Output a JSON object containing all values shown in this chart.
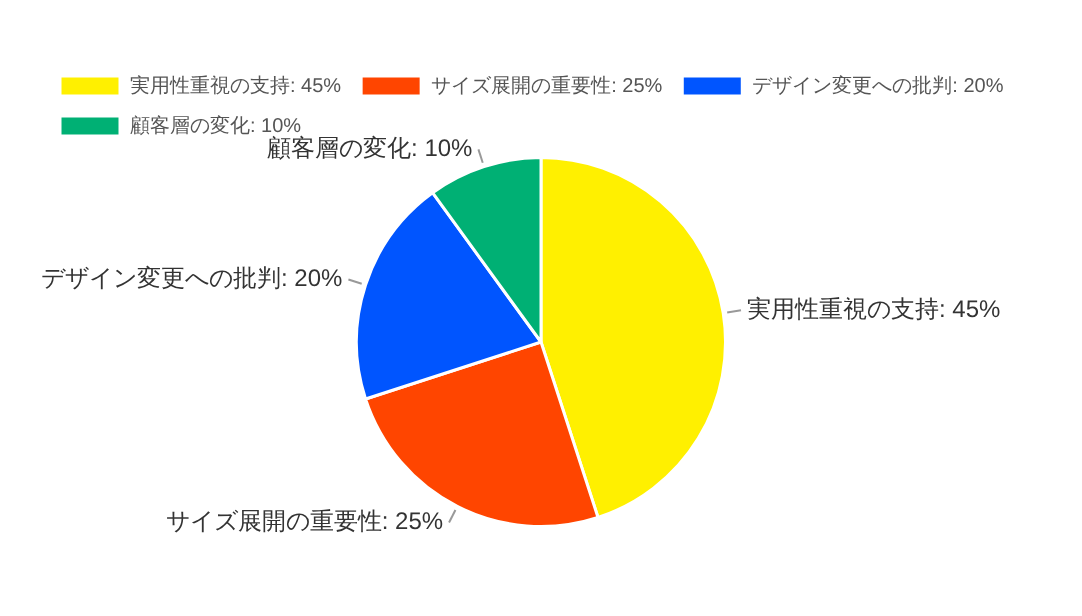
{
  "chart_data": {
    "type": "pie",
    "categories": [
      "実用性重視の支持",
      "サイズ展開の重要性",
      "デザイン変更への批判",
      "顧客層の変化"
    ],
    "values": [
      45,
      25,
      20,
      10
    ],
    "value_labels": [
      "45%",
      "25%",
      "20%",
      "10%"
    ],
    "colors": [
      "#fff000",
      "#ff4500",
      "#0055ff",
      "#00b074"
    ],
    "legend": "top"
  }
}
